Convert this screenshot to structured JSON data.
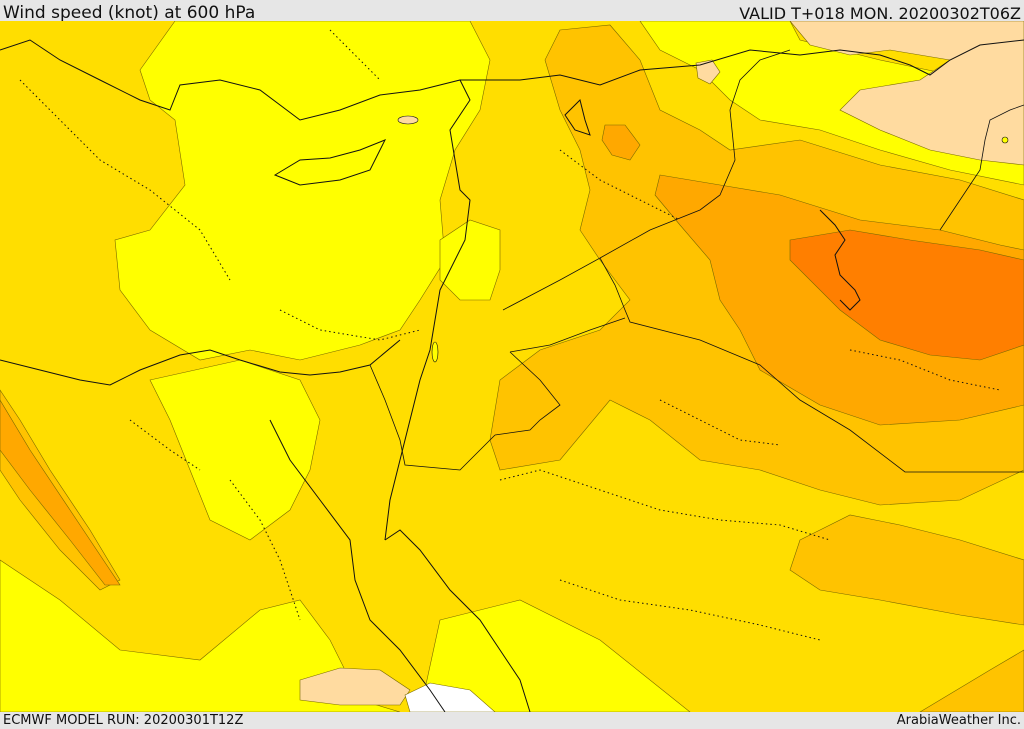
{
  "header": {
    "title": "Wind speed (knot) at 600 hPa",
    "valid": "VALID T+018 MON. 20200302T06Z"
  },
  "footer": {
    "model_run": "ECMWF MODEL RUN: 20200301T12Z",
    "credit": "ArabiaWeather Inc."
  },
  "map": {
    "palette": {
      "band_1": "#ffff00",
      "band_2": "#ffde00",
      "band_3": "#ffc300",
      "band_4": "#ffa800",
      "band_5": "#ff7f00",
      "band_6": "#ffdba0",
      "band_7": "#ffffff"
    }
  }
}
